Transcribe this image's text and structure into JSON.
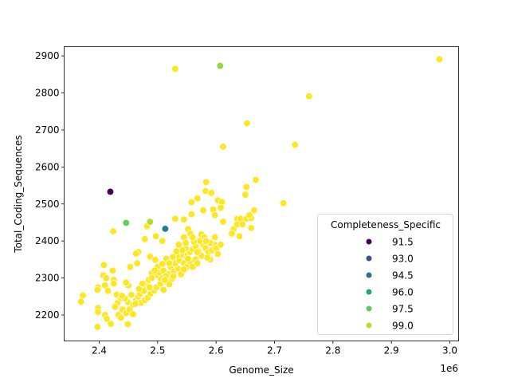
{
  "chart_data": {
    "type": "scatter",
    "xlabel": "Genome_Size",
    "ylabel": "Total_Coding_Sequences",
    "x_offset_label": "1e6",
    "xlim": [
      2.34,
      3.015
    ],
    "ylim": [
      2130,
      2925
    ],
    "x_ticks": [
      2.4,
      2.5,
      2.6,
      2.7,
      2.8,
      2.9,
      3.0
    ],
    "x_tick_labels": [
      "2.4",
      "2.5",
      "2.6",
      "2.7",
      "2.8",
      "2.9",
      "3.0"
    ],
    "y_ticks": [
      2200,
      2300,
      2400,
      2500,
      2600,
      2700,
      2800,
      2900
    ],
    "y_tick_labels": [
      "2200",
      "2300",
      "2400",
      "2500",
      "2600",
      "2700",
      "2800",
      "2900"
    ],
    "grid": false,
    "legend": {
      "title": "Completeness_Specific",
      "placement": "lower-right",
      "entries": [
        {
          "label": "91.5",
          "value": 91.5,
          "color": "#440154"
        },
        {
          "label": "93.0",
          "value": 93.0,
          "color": "#3b528b"
        },
        {
          "label": "94.5",
          "value": 94.5,
          "color": "#2c728e"
        },
        {
          "label": "96.0",
          "value": 96.0,
          "color": "#21a08a"
        },
        {
          "label": "97.5",
          "value": 97.5,
          "color": "#5ec962"
        },
        {
          "label": "99.0",
          "value": 99.0,
          "color": "#b5de2b"
        }
      ],
      "max_color": "#fde725",
      "hue_range": [
        91.4,
        100
      ]
    },
    "points": [
      [
        2.419,
        2533,
        91.4
      ],
      [
        2.513,
        2433,
        94.8
      ],
      [
        2.446,
        2449,
        97.7
      ],
      [
        2.487,
        2452,
        98.9
      ],
      [
        2.607,
        2873,
        98.4
      ],
      [
        2.53,
        2865,
        100
      ],
      [
        2.982,
        2891,
        100
      ],
      [
        2.759,
        2791,
        100
      ],
      [
        2.653,
        2718,
        100
      ],
      [
        2.735,
        2660,
        100
      ],
      [
        2.612,
        2655,
        100
      ],
      [
        2.715,
        2502,
        100
      ],
      [
        2.668,
        2565,
        100
      ],
      [
        2.652,
        2546,
        100
      ],
      [
        2.65,
        2525,
        100
      ],
      [
        2.583,
        2559,
        100
      ],
      [
        2.582,
        2535,
        100
      ],
      [
        2.592,
        2530,
        100
      ],
      [
        2.568,
        2515,
        100
      ],
      [
        2.558,
        2505,
        100
      ],
      [
        2.603,
        2510,
        100
      ],
      [
        2.61,
        2505,
        100
      ],
      [
        2.608,
        2490,
        100
      ],
      [
        2.595,
        2485,
        100
      ],
      [
        2.578,
        2483,
        100
      ],
      [
        2.558,
        2472,
        100
      ],
      [
        2.598,
        2470,
        100
      ],
      [
        2.612,
        2452,
        100
      ],
      [
        2.636,
        2460,
        100
      ],
      [
        2.642,
        2460,
        100
      ],
      [
        2.652,
        2460,
        100
      ],
      [
        2.66,
        2462,
        100
      ],
      [
        2.665,
        2483,
        100
      ],
      [
        2.657,
        2470,
        100
      ],
      [
        2.63,
        2432,
        100
      ],
      [
        2.627,
        2420,
        100
      ],
      [
        2.64,
        2413,
        100
      ],
      [
        2.66,
        2435,
        100
      ],
      [
        2.636,
        2445,
        100
      ],
      [
        2.645,
        2445,
        100
      ],
      [
        2.424,
        2426,
        100
      ],
      [
        2.482,
        2440,
        100
      ],
      [
        2.478,
        2405,
        100
      ],
      [
        2.508,
        2400,
        100
      ],
      [
        2.497,
        2413,
        100
      ],
      [
        2.545,
        2458,
        100
      ],
      [
        2.53,
        2460,
        100
      ],
      [
        2.552,
        2432,
        100
      ],
      [
        2.556,
        2420,
        100
      ],
      [
        2.545,
        2410,
        100
      ],
      [
        2.487,
        2358,
        100
      ],
      [
        2.496,
        2349,
        100
      ],
      [
        2.467,
        2370,
        100
      ],
      [
        2.463,
        2366,
        100
      ],
      [
        2.465,
        2340,
        100
      ],
      [
        2.453,
        2330,
        100
      ],
      [
        2.49,
        2313,
        100
      ],
      [
        2.48,
        2282,
        100
      ],
      [
        2.485,
        2295,
        100
      ],
      [
        2.5,
        2330,
        100
      ],
      [
        2.408,
        2335,
        100
      ],
      [
        2.407,
        2307,
        100
      ],
      [
        2.412,
        2300,
        100
      ],
      [
        2.423,
        2320,
        100
      ],
      [
        2.425,
        2295,
        100
      ],
      [
        2.398,
        2275,
        100
      ],
      [
        2.397,
        2268,
        100
      ],
      [
        2.372,
        2253,
        100
      ],
      [
        2.369,
        2236,
        100
      ],
      [
        2.41,
        2280,
        100
      ],
      [
        2.415,
        2265,
        100
      ],
      [
        2.425,
        2285,
        100
      ],
      [
        2.43,
        2255,
        100
      ],
      [
        2.437,
        2245,
        100
      ],
      [
        2.449,
        2235,
        100
      ],
      [
        2.455,
        2255,
        100
      ],
      [
        2.45,
        2280,
        100
      ],
      [
        2.446,
        2288,
        100
      ],
      [
        2.431,
        2232,
        100
      ],
      [
        2.427,
        2222,
        100
      ],
      [
        2.44,
        2215,
        100
      ],
      [
        2.433,
        2200,
        100
      ],
      [
        2.446,
        2205,
        100
      ],
      [
        2.452,
        2215,
        100
      ],
      [
        2.458,
        2228,
        100
      ],
      [
        2.398,
        2219,
        100
      ],
      [
        2.398,
        2208,
        100
      ],
      [
        2.41,
        2200,
        100
      ],
      [
        2.413,
        2190,
        100
      ],
      [
        2.42,
        2176,
        100
      ],
      [
        2.437,
        2193,
        100
      ],
      [
        2.449,
        2175,
        100
      ],
      [
        2.458,
        2202,
        100
      ],
      [
        2.397,
        2168,
        100
      ],
      [
        2.463,
        2240,
        100
      ],
      [
        2.467,
        2250,
        100
      ],
      [
        2.472,
        2233,
        100
      ],
      [
        2.478,
        2240,
        100
      ],
      [
        2.483,
        2247,
        100
      ],
      [
        2.47,
        2257,
        100
      ],
      [
        2.476,
        2265,
        100
      ],
      [
        2.488,
        2258,
        100
      ],
      [
        2.494,
        2266,
        100
      ],
      [
        2.498,
        2275,
        100
      ],
      [
        2.505,
        2285,
        100
      ],
      [
        2.51,
        2268,
        100
      ],
      [
        2.515,
        2290,
        100
      ],
      [
        2.52,
        2283,
        100
      ],
      [
        2.525,
        2298,
        100
      ],
      [
        2.505,
        2300,
        100
      ],
      [
        2.498,
        2308,
        100
      ],
      [
        2.502,
        2315,
        100
      ],
      [
        2.51,
        2320,
        100
      ],
      [
        2.518,
        2310,
        100
      ],
      [
        2.522,
        2330,
        100
      ],
      [
        2.528,
        2318,
        100
      ],
      [
        2.535,
        2325,
        100
      ],
      [
        2.54,
        2310,
        100
      ],
      [
        2.53,
        2340,
        100
      ],
      [
        2.537,
        2348,
        100
      ],
      [
        2.545,
        2340,
        100
      ],
      [
        2.548,
        2360,
        100
      ],
      [
        2.54,
        2362,
        100
      ],
      [
        2.533,
        2360,
        100
      ],
      [
        2.55,
        2330,
        100
      ],
      [
        2.555,
        2345,
        100
      ],
      [
        2.56,
        2330,
        100
      ],
      [
        2.565,
        2350,
        100
      ],
      [
        2.555,
        2370,
        100
      ],
      [
        2.56,
        2378,
        100
      ],
      [
        2.548,
        2380,
        100
      ],
      [
        2.542,
        2375,
        100
      ],
      [
        2.565,
        2385,
        100
      ],
      [
        2.57,
        2372,
        100
      ],
      [
        2.575,
        2360,
        100
      ],
      [
        2.578,
        2390,
        100
      ],
      [
        2.572,
        2400,
        100
      ],
      [
        2.582,
        2380,
        100
      ],
      [
        2.587,
        2370,
        100
      ],
      [
        2.59,
        2350,
        100
      ],
      [
        2.585,
        2355,
        100
      ],
      [
        2.593,
        2375,
        100
      ],
      [
        2.597,
        2390,
        100
      ],
      [
        2.6,
        2380,
        100
      ],
      [
        2.598,
        2410,
        100
      ],
      [
        2.603,
        2365,
        100
      ],
      [
        2.608,
        2390,
        100
      ],
      [
        2.59,
        2395,
        100
      ],
      [
        2.562,
        2398,
        100
      ],
      [
        2.575,
        2418,
        100
      ],
      [
        2.548,
        2395,
        100
      ],
      [
        2.536,
        2390,
        100
      ],
      [
        2.532,
        2372,
        100
      ],
      [
        2.526,
        2357,
        100
      ],
      [
        2.515,
        2352,
        100
      ],
      [
        2.52,
        2340,
        100
      ],
      [
        2.508,
        2338,
        100
      ],
      [
        2.495,
        2320,
        100
      ],
      [
        2.49,
        2300,
        100
      ],
      [
        2.486,
        2275,
        100
      ],
      [
        2.474,
        2285,
        100
      ],
      [
        2.468,
        2270,
        100
      ],
      [
        2.462,
        2230,
        100
      ],
      [
        2.444,
        2245,
        100
      ],
      [
        2.439,
        2252,
        100
      ],
      [
        2.514,
        2305,
        100
      ],
      [
        2.527,
        2305,
        100
      ],
      [
        2.545,
        2323,
        100
      ],
      [
        2.552,
        2352,
        100
      ],
      [
        2.568,
        2340,
        100
      ],
      [
        2.58,
        2410,
        100
      ],
      [
        2.583,
        2400,
        100
      ],
      [
        2.56,
        2410,
        100
      ],
      [
        2.568,
        2370,
        100
      ],
      [
        2.512,
        2295,
        100
      ]
    ]
  }
}
